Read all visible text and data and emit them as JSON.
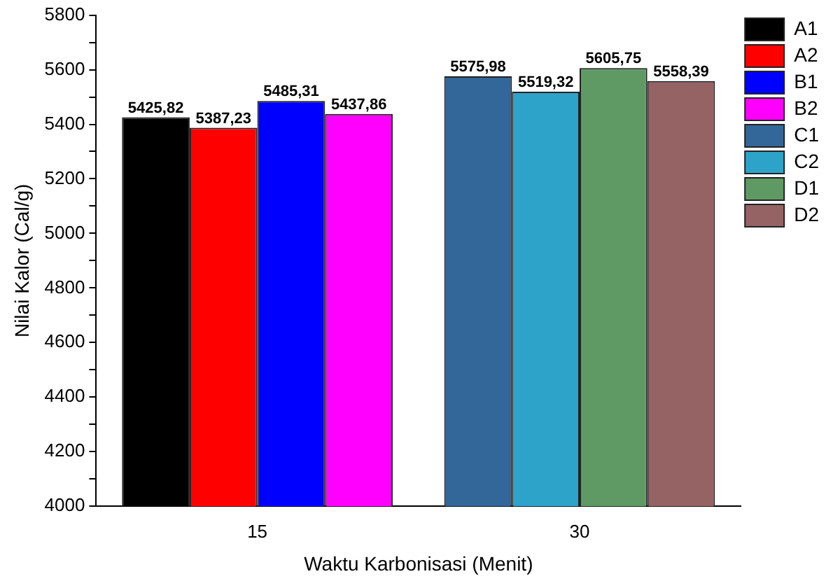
{
  "chart_data": {
    "type": "bar",
    "xlabel": "Waktu Karbonisasi (Menit)",
    "ylabel": "Nilai Kalor (Cal/g)",
    "categories": [
      "15",
      "30"
    ],
    "series": [
      {
        "name": "A1",
        "color": "#000000",
        "values": [
          5425.82,
          null
        ],
        "value_labels": [
          "5425,82",
          null
        ]
      },
      {
        "name": "A2",
        "color": "#ff0000",
        "values": [
          5387.23,
          null
        ],
        "value_labels": [
          "5387,23",
          null
        ]
      },
      {
        "name": "B1",
        "color": "#0000ff",
        "values": [
          5485.31,
          null
        ],
        "value_labels": [
          "5485,31",
          null
        ]
      },
      {
        "name": "B2",
        "color": "#ff00ff",
        "values": [
          5437.86,
          null
        ],
        "value_labels": [
          "5437,86",
          null
        ]
      },
      {
        "name": "C1",
        "color": "#336699",
        "values": [
          null,
          5575.98
        ],
        "value_labels": [
          null,
          "5575,98"
        ]
      },
      {
        "name": "C2",
        "color": "#2ea3c9",
        "values": [
          null,
          5519.32
        ],
        "value_labels": [
          null,
          "5519,32"
        ]
      },
      {
        "name": "D1",
        "color": "#5f9a64",
        "values": [
          null,
          5605.75
        ],
        "value_labels": [
          null,
          "5605,75"
        ]
      },
      {
        "name": "D2",
        "color": "#956364",
        "values": [
          null,
          5558.39
        ],
        "value_labels": [
          null,
          "5558,39"
        ]
      }
    ],
    "ylim": [
      4000,
      5800
    ],
    "yticks": [
      4000,
      {
        "value": 4100,
        "label": null
      },
      4200,
      {
        "value": 4300,
        "label": null
      },
      4400,
      {
        "value": 4500,
        "label": null
      },
      4600,
      {
        "value": 4700,
        "label": null
      },
      4800,
      {
        "value": 4900,
        "label": null
      },
      5000,
      {
        "value": 5100,
        "label": null
      },
      5200,
      {
        "value": 5300,
        "label": null
      },
      5400,
      {
        "value": 5500,
        "label": null
      },
      5600,
      {
        "value": 5700,
        "label": null
      },
      5800
    ],
    "grid": false,
    "legend": "top right"
  }
}
